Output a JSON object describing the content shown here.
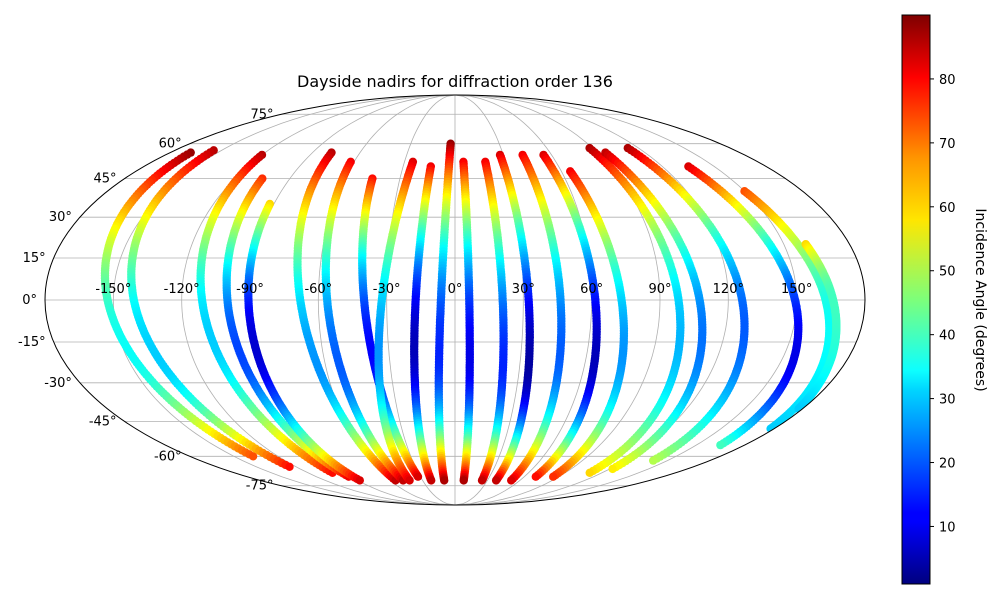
{
  "chart_data": {
    "type": "scatter",
    "projection": "Mollweide",
    "title": "Dayside nadirs for diffraction order 136",
    "colorbar": {
      "label": "Incidence Angle (degrees)",
      "colormap": "jet",
      "min": 1,
      "max": 90,
      "ticks": [
        10,
        20,
        30,
        40,
        50,
        60,
        70,
        80
      ]
    },
    "xticks": [
      -150,
      -120,
      -90,
      -60,
      -30,
      0,
      30,
      60,
      90,
      120,
      150
    ],
    "xtick_labels": [
      "-150°",
      "-120°",
      "-90°",
      "-60°",
      "-30°",
      "0°",
      "30°",
      "60°",
      "90°",
      "120°",
      "150°"
    ],
    "yticks": [
      -75,
      -60,
      -45,
      -30,
      -15,
      0,
      15,
      30,
      45,
      60,
      75
    ],
    "ytick_labels": [
      "-75°",
      "-60°",
      "-45°",
      "-30°",
      "-15°",
      "0°",
      "15°",
      "30°",
      "45°",
      "60°",
      "75°"
    ],
    "grid": true,
    "tracks": [
      {
        "lon_top": -167,
        "lon_bottom": -137,
        "lat_top": 56,
        "lat_bottom": -60,
        "inc_top": 88,
        "inc_min": 35,
        "lat_min": -20,
        "inc_bottom": 72
      },
      {
        "lon_top": -155,
        "lon_bottom": -125,
        "lat_top": 57,
        "lat_bottom": -65,
        "inc_top": 85,
        "inc_min": 30,
        "lat_min": -22,
        "inc_bottom": 78
      },
      {
        "lon_top": -120,
        "lon_bottom": -100,
        "lat_top": 55,
        "lat_bottom": -68,
        "inc_top": 85,
        "inc_min": 30,
        "lat_min": -15,
        "inc_bottom": 78
      },
      {
        "lon_top": -105,
        "lon_bottom": -92,
        "lat_top": 45,
        "lat_bottom": -70,
        "inc_top": 75,
        "inc_min": 18,
        "lat_min": -20,
        "inc_bottom": 80
      },
      {
        "lon_top": -92,
        "lon_bottom": -88,
        "lat_top": 35,
        "lat_bottom": -72,
        "inc_top": 60,
        "inc_min": 8,
        "lat_min": -18,
        "inc_bottom": 82
      },
      {
        "lon_top": -78,
        "lon_bottom": -55,
        "lat_top": 56,
        "lat_bottom": -72,
        "inc_top": 85,
        "inc_min": 25,
        "lat_min": -25,
        "inc_bottom": 84
      },
      {
        "lon_top": -62,
        "lon_bottom": -48,
        "lat_top": 52,
        "lat_bottom": -72,
        "inc_top": 80,
        "inc_min": 20,
        "lat_min": -25,
        "inc_bottom": 84
      },
      {
        "lon_top": -45,
        "lon_bottom": -32,
        "lat_top": 45,
        "lat_bottom": -70,
        "inc_top": 78,
        "inc_min": 12,
        "lat_min": -20,
        "inc_bottom": 82
      },
      {
        "lon_top": -25,
        "lon_bottom": -42,
        "lat_top": 52,
        "lat_bottom": -72,
        "inc_top": 82,
        "inc_min": 25,
        "lat_min": -20,
        "inc_bottom": 82
      },
      {
        "lon_top": -14,
        "lon_bottom": -22,
        "lat_top": 50,
        "lat_bottom": -72,
        "inc_top": 80,
        "inc_min": 6,
        "lat_min": -18,
        "inc_bottom": 84
      },
      {
        "lon_top": -3,
        "lon_bottom": -10,
        "lat_top": 60,
        "lat_bottom": -72,
        "inc_top": 88,
        "inc_min": 15,
        "lat_min": -20,
        "inc_bottom": 86
      },
      {
        "lon_top": 5,
        "lon_bottom": 8,
        "lat_top": 52,
        "lat_bottom": -72,
        "inc_top": 80,
        "inc_min": 10,
        "lat_min": -22,
        "inc_bottom": 86
      },
      {
        "lon_top": 18,
        "lon_bottom": 25,
        "lat_top": 52,
        "lat_bottom": -72,
        "inc_top": 80,
        "inc_min": 15,
        "lat_min": -25,
        "inc_bottom": 84
      },
      {
        "lon_top": 28,
        "lon_bottom": 38,
        "lat_top": 55,
        "lat_bottom": -72,
        "inc_top": 82,
        "inc_min": 4,
        "lat_min": -25,
        "inc_bottom": 84
      },
      {
        "lon_top": 42,
        "lon_bottom": 52,
        "lat_top": 55,
        "lat_bottom": -72,
        "inc_top": 80,
        "inc_min": 20,
        "lat_min": -20,
        "inc_bottom": 82
      },
      {
        "lon_top": 55,
        "lon_bottom": 70,
        "lat_top": 55,
        "lat_bottom": -70,
        "inc_top": 82,
        "inc_min": 6,
        "lat_min": -22,
        "inc_bottom": 78
      },
      {
        "lon_top": 65,
        "lon_bottom": 85,
        "lat_top": 48,
        "lat_bottom": -70,
        "inc_top": 80,
        "inc_min": 25,
        "lat_min": -20,
        "inc_bottom": 75
      },
      {
        "lon_top": 88,
        "lon_bottom": 110,
        "lat_top": 58,
        "lat_bottom": -68,
        "inc_top": 86,
        "inc_min": 28,
        "lat_min": -15,
        "inc_bottom": 60
      },
      {
        "lon_top": 95,
        "lon_bottom": 122,
        "lat_top": 56,
        "lat_bottom": -66,
        "inc_top": 84,
        "inc_min": 22,
        "lat_min": -15,
        "inc_bottom": 58
      },
      {
        "lon_top": 113,
        "lon_bottom": 140,
        "lat_top": 58,
        "lat_bottom": -62,
        "inc_top": 86,
        "inc_min": 20,
        "lat_min": -10,
        "inc_bottom": 50
      },
      {
        "lon_top": 135,
        "lon_bottom": 165,
        "lat_top": 50,
        "lat_bottom": -55,
        "inc_top": 82,
        "inc_min": 10,
        "lat_min": -20,
        "inc_bottom": 40
      },
      {
        "lon_top": 150,
        "lon_bottom": 178,
        "lat_top": 40,
        "lat_bottom": -48,
        "inc_top": 72,
        "inc_min": 35,
        "lat_min": -10,
        "inc_bottom": 30
      },
      {
        "lon_top": 160,
        "lon_bottom": 178,
        "lat_top": 20,
        "lat_bottom": -40,
        "inc_top": 60,
        "inc_min": 40,
        "lat_min": 0,
        "inc_bottom": 30
      }
    ]
  }
}
